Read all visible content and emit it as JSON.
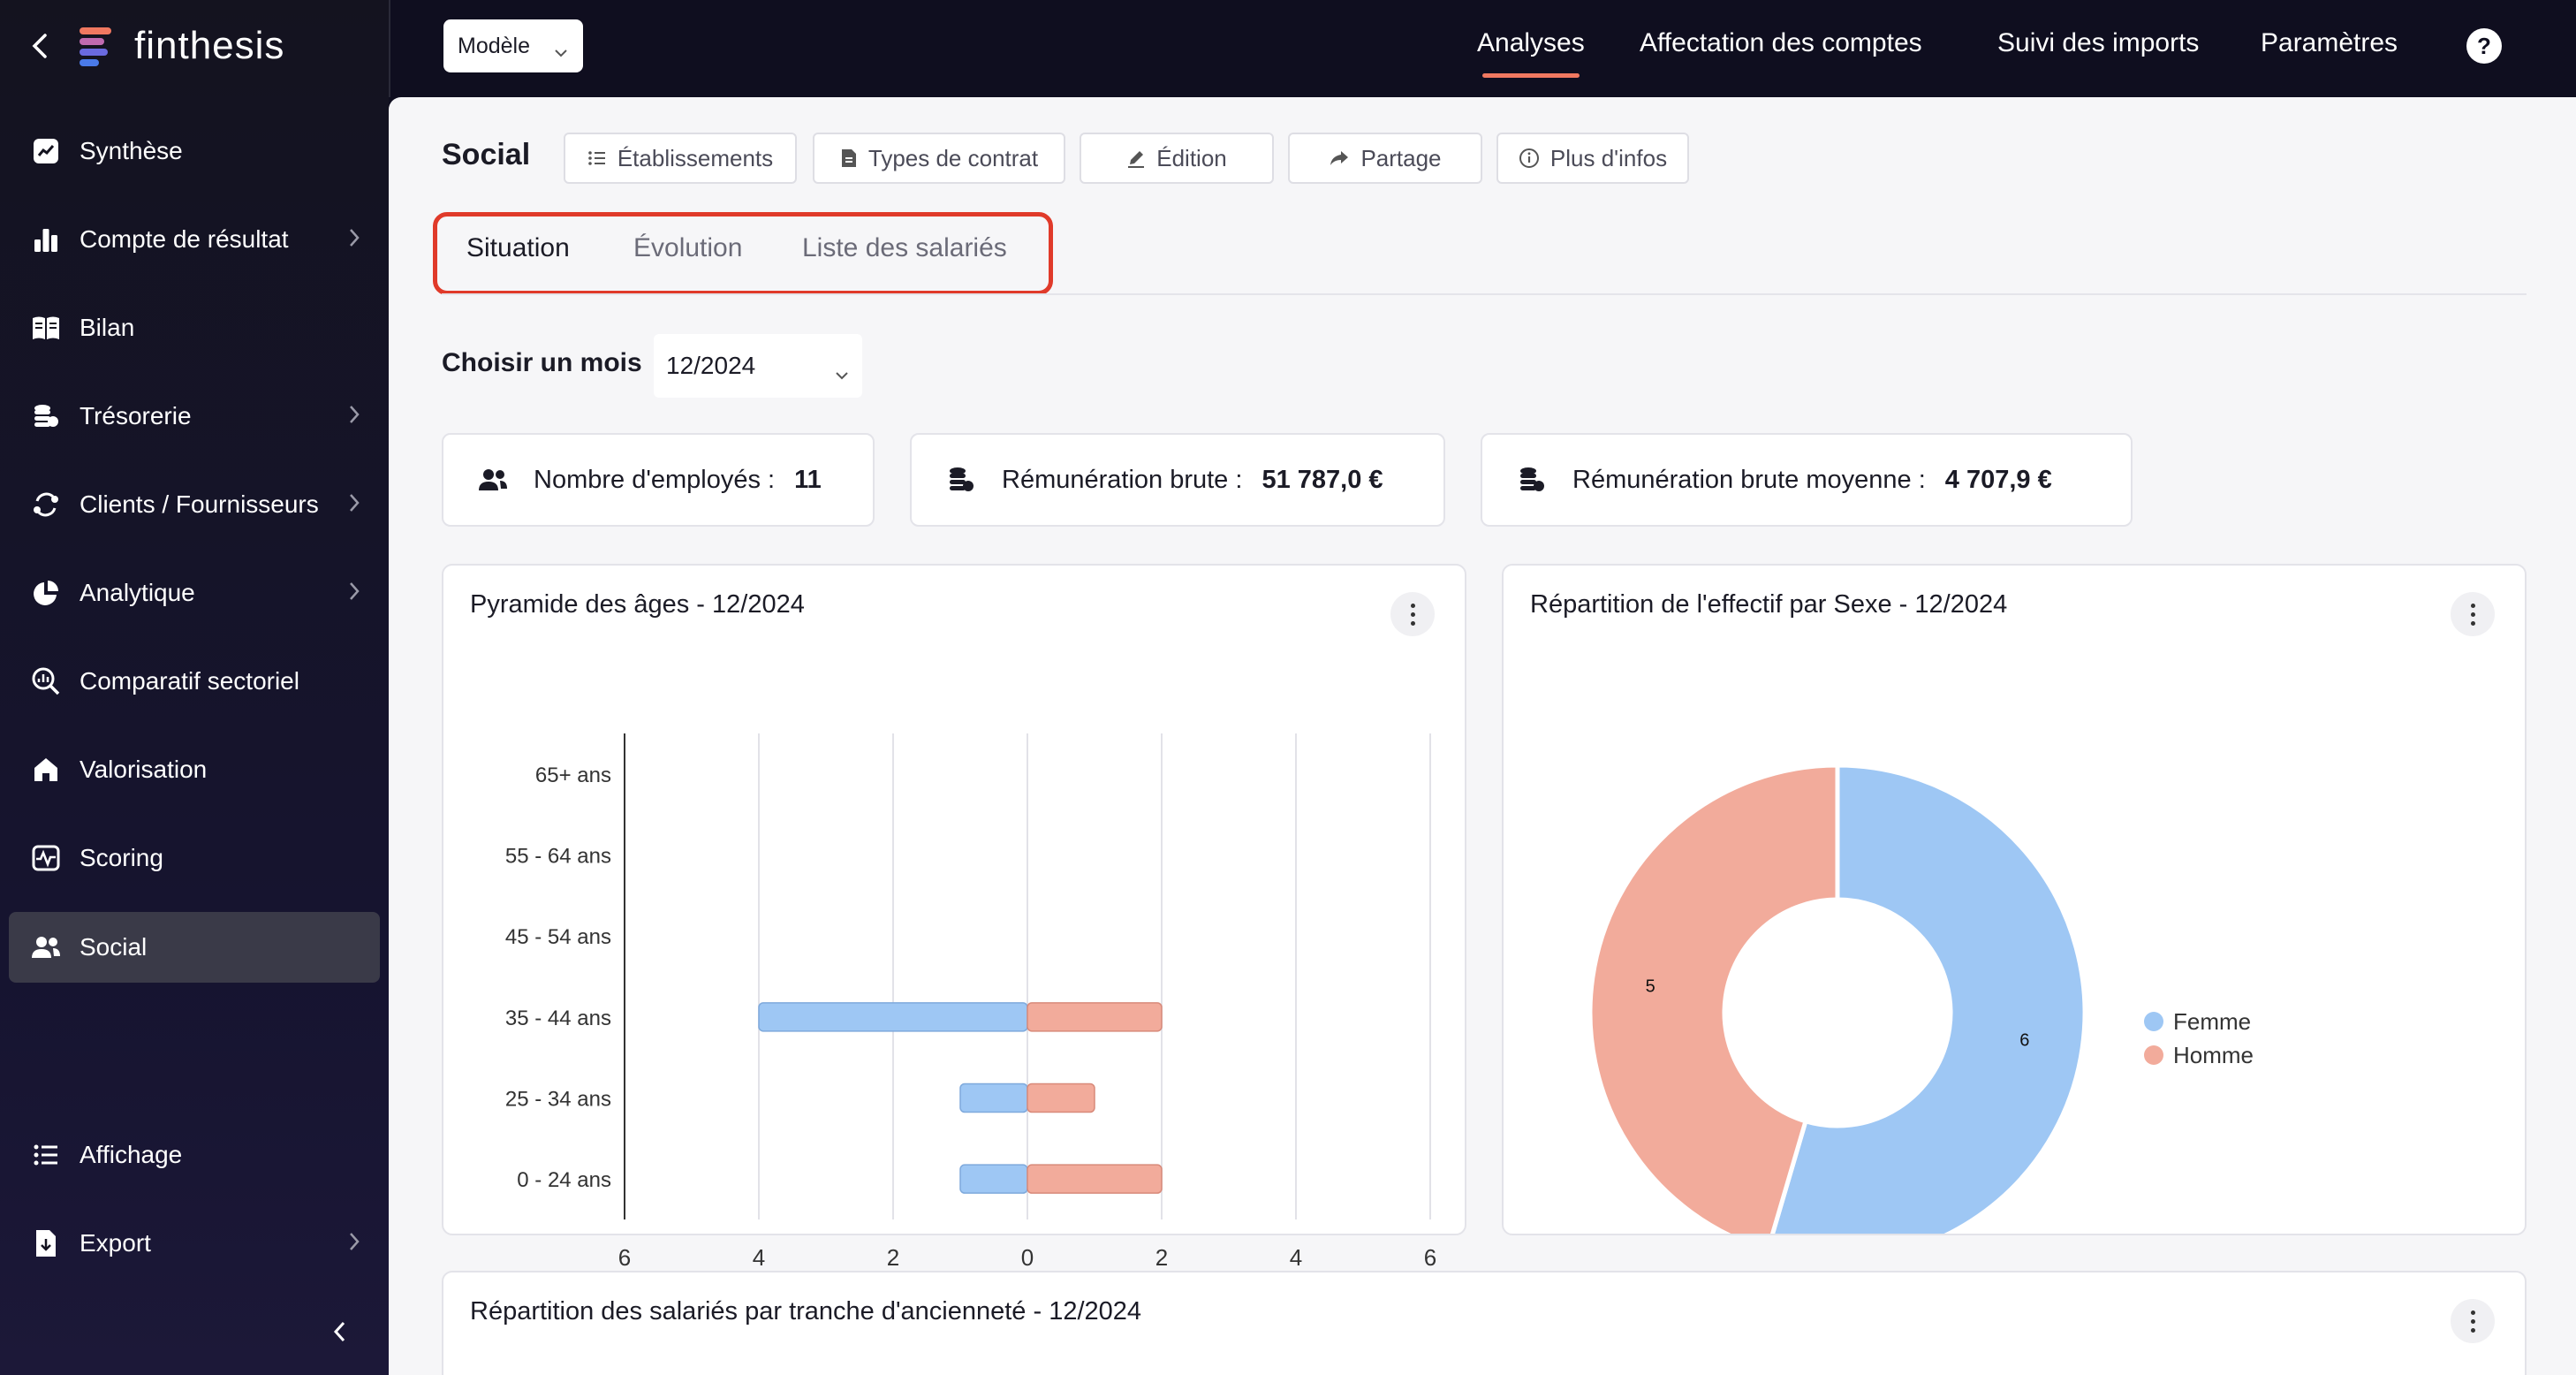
{
  "sidebar": {
    "brand": "finthesis",
    "items": [
      {
        "label": "Synthèse",
        "icon": "chart-line-icon",
        "has_submenu": false
      },
      {
        "label": "Compte de résultat",
        "icon": "bar-chart-icon",
        "has_submenu": true
      },
      {
        "label": "Bilan",
        "icon": "book-icon",
        "has_submenu": false
      },
      {
        "label": "Trésorerie",
        "icon": "coins-icon",
        "has_submenu": true
      },
      {
        "label": "Clients / Fournisseurs",
        "icon": "exchange-icon",
        "has_submenu": true
      },
      {
        "label": "Analytique",
        "icon": "pie-chart-icon",
        "has_submenu": true
      },
      {
        "label": "Comparatif sectoriel",
        "icon": "magnify-chart-icon",
        "has_submenu": false
      },
      {
        "label": "Valorisation",
        "icon": "home-icon",
        "has_submenu": false
      },
      {
        "label": "Scoring",
        "icon": "pulse-icon",
        "has_submenu": false
      },
      {
        "label": "Social",
        "icon": "users-icon",
        "has_submenu": false,
        "active": true
      }
    ],
    "bottom_items": [
      {
        "label": "Affichage",
        "icon": "list-icon",
        "has_submenu": false
      },
      {
        "label": "Export",
        "icon": "export-icon",
        "has_submenu": true
      }
    ]
  },
  "topbar": {
    "model_select": "Modèle",
    "links": [
      "Analyses",
      "Affectation des comptes",
      "Suivi des imports",
      "Paramètres"
    ],
    "active_link": "Analyses",
    "help": "?"
  },
  "page": {
    "title": "Social",
    "toolbar": [
      "Établissements",
      "Types de contrat",
      "Édition",
      "Partage",
      "Plus d'infos"
    ],
    "tabs": [
      "Situation",
      "Évolution",
      "Liste des salariés"
    ],
    "active_tab": "Situation",
    "month_label": "Choisir un mois",
    "month_value": "12/2024"
  },
  "kpis": [
    {
      "label": "Nombre d'employés :",
      "value": "11",
      "icon": "users-icon"
    },
    {
      "label": "Rémunération brute :",
      "value": "51 787,0 €",
      "icon": "coins-icon"
    },
    {
      "label": "Rémunération brute moyenne :",
      "value": "4 707,9 €",
      "icon": "coins-icon"
    }
  ],
  "colors": {
    "femme": "#9ec7f4",
    "homme": "#f2ab9b",
    "accent": "#f07860",
    "highlight": "#e03a2a"
  },
  "cards": {
    "pyramid_title": "Pyramide des âges - 12/2024",
    "sex_title": "Répartition de l'effectif par Sexe - 12/2024",
    "seniority_title": "Répartition des salariés par tranche d'ancienneté - 12/2024"
  },
  "chart_data": [
    {
      "type": "bar",
      "orientation": "horizontal-pyramid",
      "title": "Pyramide des âges - 12/2024",
      "categories": [
        "65+ ans",
        "55 - 64 ans",
        "45 - 54 ans",
        "35 - 44 ans",
        "25 - 34 ans",
        "0 - 24 ans"
      ],
      "series": [
        {
          "name": "Femme",
          "values": [
            0,
            0,
            0,
            4,
            1,
            1
          ]
        },
        {
          "name": "Homme",
          "values": [
            0,
            0,
            0,
            2,
            1,
            2
          ]
        }
      ],
      "x_ticks": [
        "6",
        "4",
        "2",
        "0",
        "2",
        "4",
        "6"
      ],
      "xlim": [
        -6,
        6
      ],
      "grid": true,
      "legend": "bottom"
    },
    {
      "type": "pie",
      "style": "donut",
      "title": "Répartition de l'effectif par Sexe - 12/2024",
      "categories": [
        "Femme",
        "Homme"
      ],
      "values": [
        6,
        5
      ],
      "legend": "right"
    }
  ]
}
